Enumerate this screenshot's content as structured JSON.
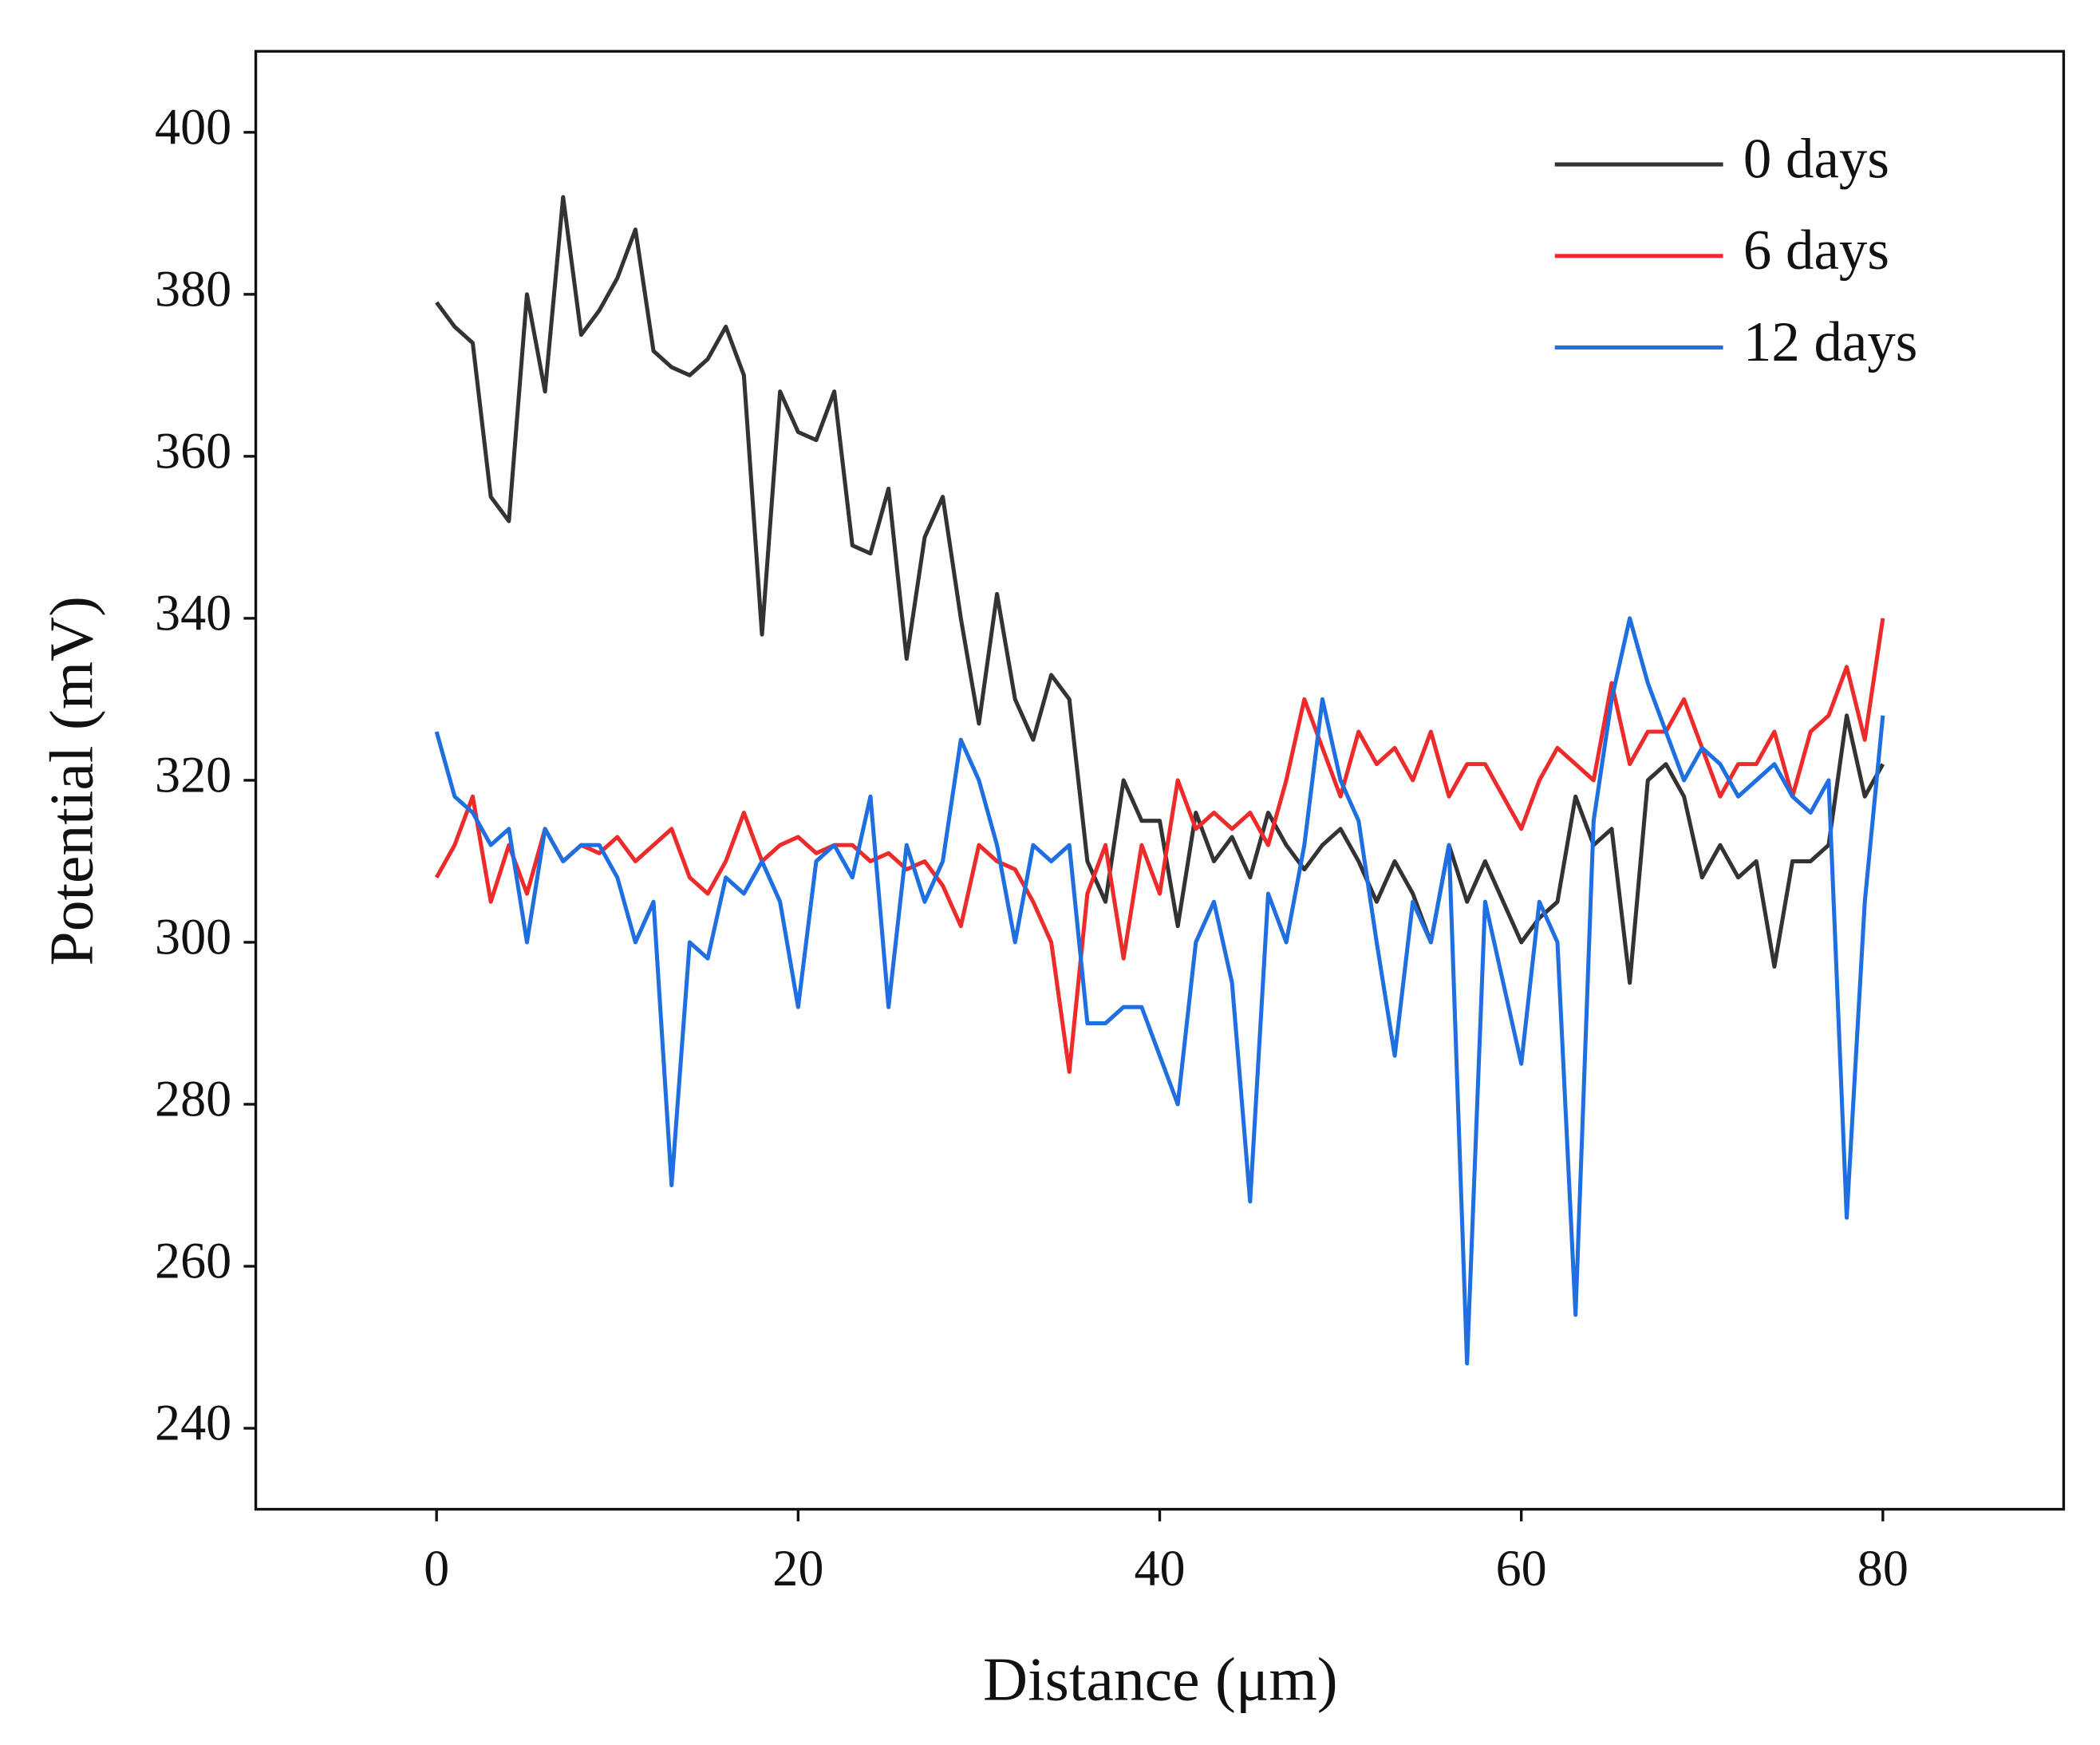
{
  "chart_data": {
    "type": "line",
    "x_label": "Distance (μm)",
    "y_label": "Potential (mV)",
    "x": [
      0,
      1,
      2,
      3,
      4,
      5,
      6,
      7,
      8,
      9,
      10,
      11,
      12,
      13,
      14,
      15,
      16,
      17,
      18,
      19,
      20,
      21,
      22,
      23,
      24,
      25,
      26,
      27,
      28,
      29,
      30,
      31,
      32,
      33,
      34,
      35,
      36,
      37,
      38,
      39,
      40,
      41,
      42,
      43,
      44,
      45,
      46,
      47,
      48,
      49,
      50,
      51,
      52,
      53,
      54,
      55,
      56,
      57,
      58,
      59,
      60,
      61,
      62,
      63,
      64,
      65,
      66,
      67,
      68,
      69,
      70,
      71,
      72,
      73,
      74,
      75,
      76,
      77,
      78,
      79,
      80
    ],
    "series": [
      {
        "name": "0 days",
        "color": "#333333",
        "values": [
          379,
          376,
          374,
          355,
          352,
          380,
          368,
          392,
          375,
          378,
          382,
          388,
          373,
          371,
          370,
          372,
          376,
          370,
          338,
          368,
          363,
          362,
          368,
          349,
          348,
          356,
          335,
          350,
          355,
          340,
          327,
          343,
          330,
          325,
          333,
          330,
          310,
          305,
          320,
          315,
          315,
          302,
          316,
          310,
          313,
          308,
          316,
          312,
          309,
          312,
          314,
          310,
          305,
          310,
          306,
          300,
          312,
          305,
          310,
          305,
          300,
          303,
          305,
          318,
          312,
          314,
          295,
          320,
          322,
          318,
          308,
          312,
          308,
          310,
          297,
          310,
          310,
          312,
          328,
          318,
          322
        ]
      },
      {
        "name": "6 days",
        "color": "#ee2b2b",
        "values": [
          308,
          312,
          318,
          305,
          312,
          306,
          314,
          310,
          312,
          311,
          313,
          310,
          312,
          314,
          308,
          306,
          310,
          316,
          310,
          312,
          313,
          311,
          312,
          312,
          310,
          311,
          309,
          310,
          307,
          302,
          312,
          310,
          309,
          305,
          300,
          284,
          306,
          312,
          298,
          312,
          306,
          320,
          314,
          316,
          314,
          316,
          312,
          320,
          330,
          324,
          318,
          326,
          322,
          324,
          320,
          326,
          318,
          322,
          322,
          318,
          314,
          320,
          324,
          322,
          320,
          332,
          322,
          326,
          326,
          330,
          324,
          318,
          322,
          322,
          326,
          318,
          326,
          328,
          334,
          325,
          340
        ]
      },
      {
        "name": "12 days",
        "color": "#1f6fe0",
        "values": [
          326,
          318,
          316,
          312,
          314,
          300,
          314,
          310,
          312,
          312,
          308,
          300,
          305,
          270,
          300,
          298,
          308,
          306,
          310,
          305,
          292,
          310,
          312,
          308,
          318,
          292,
          312,
          305,
          310,
          325,
          320,
          312,
          300,
          312,
          310,
          312,
          290,
          290,
          292,
          292,
          286,
          280,
          300,
          305,
          295,
          268,
          306,
          300,
          312,
          330,
          320,
          315,
          300,
          286,
          305,
          300,
          312,
          248,
          305,
          295,
          285,
          305,
          300,
          254,
          315,
          330,
          340,
          332,
          326,
          320,
          324,
          322,
          318,
          320,
          322,
          318,
          316,
          320,
          266,
          305,
          328
        ]
      }
    ],
    "xlim": [
      -10,
      90
    ],
    "xticks": [
      0,
      20,
      40,
      60,
      80
    ],
    "ylim": [
      230,
      410
    ],
    "yticks": [
      240,
      260,
      280,
      300,
      320,
      340,
      360,
      380,
      400
    ],
    "legend": "upper right"
  }
}
